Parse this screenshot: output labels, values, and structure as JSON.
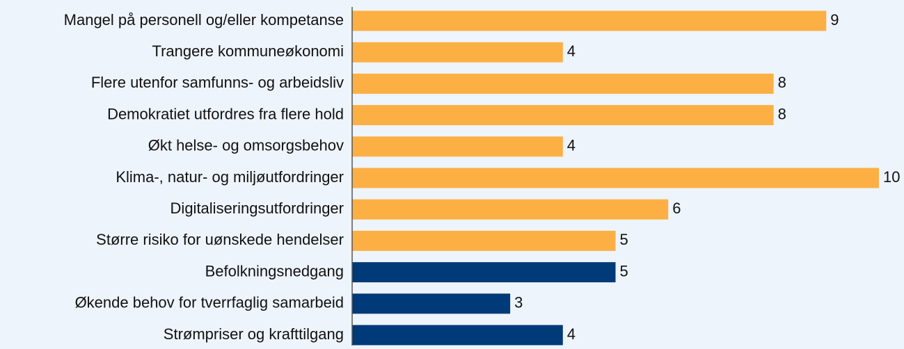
{
  "chart_data": {
    "type": "barh",
    "categories": [
      "Mangel på personell og/eller kompetanse",
      "Trangere kommuneøkonomi",
      "Flere utenfor samfunns- og arbeidsliv",
      "Demokratiet utfordres fra flere hold",
      "Økt helse- og omsorgsbehov",
      "Klima-, natur- og miljøutfordringer",
      "Digitaliseringsutfordringer",
      "Større risiko for uønskede hendelser",
      "Befolkningsnedgang",
      "Økende behov for tverrfaglig samarbeid",
      "Strømpriser og krafttilgang"
    ],
    "values": [
      9,
      4,
      8,
      8,
      4,
      10,
      6,
      5,
      5,
      3,
      4
    ],
    "colors": [
      "#fcb044",
      "#fcb044",
      "#fcb044",
      "#fcb044",
      "#fcb044",
      "#fcb044",
      "#fcb044",
      "#fcb044",
      "#003a78",
      "#003a78",
      "#003a78"
    ]
  }
}
